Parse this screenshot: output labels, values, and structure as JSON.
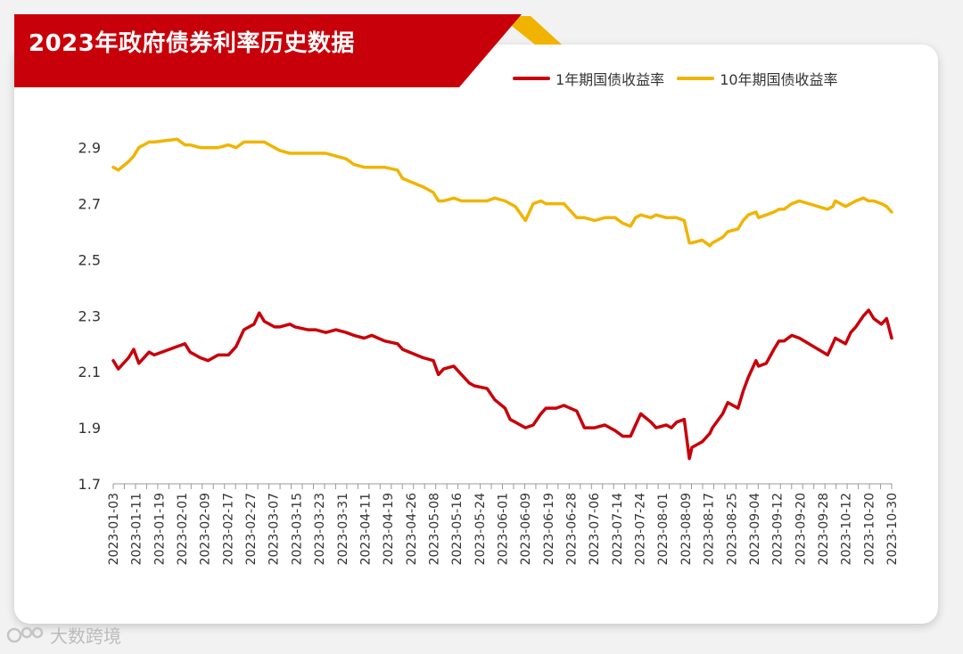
{
  "header": {
    "title": "2023年政府债券利率历史数据",
    "banner_color": "#c8000a",
    "banner_accent_color": "#f0b400"
  },
  "watermark": {
    "text": "大数跨境"
  },
  "chart_data": {
    "type": "line",
    "title": "2023年政府债券利率历史数据",
    "xlabel": "",
    "ylabel": "",
    "ylim": [
      1.7,
      2.95
    ],
    "yticks": [
      1.7,
      1.9,
      2.1,
      2.3,
      2.5,
      2.7,
      2.9
    ],
    "ytick_labels": [
      "1.7",
      "1.9",
      "2.1",
      "2.3",
      "2.5",
      "2.7",
      "2.9"
    ],
    "xlim": [
      "2023-01-03",
      "2023-11-03"
    ],
    "xtick_labels": [
      "2023-01-03",
      "2023-01-11",
      "2023-01-19",
      "2023-02-01",
      "2023-02-09",
      "2023-02-17",
      "2023-02-27",
      "2023-03-07",
      "2023-03-15",
      "2023-03-23",
      "2023-03-31",
      "2023-04-11",
      "2023-04-19",
      "2023-04-26",
      "2023-05-08",
      "2023-05-16",
      "2023-05-24",
      "2023-06-01",
      "2023-06-09",
      "2023-06-19",
      "2023-06-28",
      "2023-07-06",
      "2023-07-14",
      "2023-07-24",
      "2023-08-01",
      "2023-08-09",
      "2023-08-17",
      "2023-08-25",
      "2023-09-04",
      "2023-09-12",
      "2023-09-20",
      "2023-09-28",
      "2023-10-12",
      "2023-10-20",
      "2023-10-30"
    ],
    "legend_position": "top-right",
    "grid": false,
    "series": [
      {
        "name": "1年期国债收益率",
        "color": "#c8000a",
        "points": [
          [
            "2023-01-03",
            2.14
          ],
          [
            "2023-01-05",
            2.11
          ],
          [
            "2023-01-09",
            2.15
          ],
          [
            "2023-01-11",
            2.18
          ],
          [
            "2023-01-13",
            2.13
          ],
          [
            "2023-01-17",
            2.17
          ],
          [
            "2023-01-19",
            2.16
          ],
          [
            "2023-01-28",
            2.19
          ],
          [
            "2023-01-31",
            2.2
          ],
          [
            "2023-02-02",
            2.17
          ],
          [
            "2023-02-06",
            2.15
          ],
          [
            "2023-02-09",
            2.14
          ],
          [
            "2023-02-13",
            2.16
          ],
          [
            "2023-02-17",
            2.16
          ],
          [
            "2023-02-20",
            2.19
          ],
          [
            "2023-02-23",
            2.25
          ],
          [
            "2023-02-27",
            2.27
          ],
          [
            "2023-03-01",
            2.31
          ],
          [
            "2023-03-03",
            2.28
          ],
          [
            "2023-03-07",
            2.26
          ],
          [
            "2023-03-09",
            2.26
          ],
          [
            "2023-03-13",
            2.27
          ],
          [
            "2023-03-15",
            2.26
          ],
          [
            "2023-03-20",
            2.25
          ],
          [
            "2023-03-23",
            2.25
          ],
          [
            "2023-03-27",
            2.24
          ],
          [
            "2023-03-31",
            2.25
          ],
          [
            "2023-04-04",
            2.24
          ],
          [
            "2023-04-07",
            2.23
          ],
          [
            "2023-04-11",
            2.22
          ],
          [
            "2023-04-14",
            2.23
          ],
          [
            "2023-04-19",
            2.21
          ],
          [
            "2023-04-24",
            2.2
          ],
          [
            "2023-04-26",
            2.18
          ],
          [
            "2023-05-04",
            2.15
          ],
          [
            "2023-05-08",
            2.14
          ],
          [
            "2023-05-10",
            2.09
          ],
          [
            "2023-05-12",
            2.11
          ],
          [
            "2023-05-16",
            2.12
          ],
          [
            "2023-05-19",
            2.09
          ],
          [
            "2023-05-22",
            2.06
          ],
          [
            "2023-05-24",
            2.05
          ],
          [
            "2023-05-29",
            2.04
          ],
          [
            "2023-06-01",
            2.0
          ],
          [
            "2023-06-05",
            1.97
          ],
          [
            "2023-06-07",
            1.93
          ],
          [
            "2023-06-09",
            1.92
          ],
          [
            "2023-06-13",
            1.9
          ],
          [
            "2023-06-16",
            1.91
          ],
          [
            "2023-06-19",
            1.95
          ],
          [
            "2023-06-21",
            1.97
          ],
          [
            "2023-06-25",
            1.97
          ],
          [
            "2023-06-28",
            1.98
          ],
          [
            "2023-07-03",
            1.96
          ],
          [
            "2023-07-06",
            1.9
          ],
          [
            "2023-07-10",
            1.9
          ],
          [
            "2023-07-14",
            1.91
          ],
          [
            "2023-07-18",
            1.89
          ],
          [
            "2023-07-21",
            1.87
          ],
          [
            "2023-07-24",
            1.87
          ],
          [
            "2023-07-26",
            1.91
          ],
          [
            "2023-07-28",
            1.95
          ],
          [
            "2023-08-01",
            1.92
          ],
          [
            "2023-08-03",
            1.9
          ],
          [
            "2023-08-07",
            1.91
          ],
          [
            "2023-08-09",
            1.9
          ],
          [
            "2023-08-11",
            1.92
          ],
          [
            "2023-08-14",
            1.93
          ],
          [
            "2023-08-16",
            1.79
          ],
          [
            "2023-08-17",
            1.83
          ],
          [
            "2023-08-21",
            1.85
          ],
          [
            "2023-08-24",
            1.88
          ],
          [
            "2023-08-25",
            1.9
          ],
          [
            "2023-08-29",
            1.95
          ],
          [
            "2023-08-31",
            1.99
          ],
          [
            "2023-09-04",
            1.97
          ],
          [
            "2023-09-06",
            2.03
          ],
          [
            "2023-09-08",
            2.08
          ],
          [
            "2023-09-11",
            2.14
          ],
          [
            "2023-09-12",
            2.12
          ],
          [
            "2023-09-15",
            2.13
          ],
          [
            "2023-09-18",
            2.18
          ],
          [
            "2023-09-20",
            2.21
          ],
          [
            "2023-09-22",
            2.21
          ],
          [
            "2023-09-25",
            2.23
          ],
          [
            "2023-09-28",
            2.22
          ],
          [
            "2023-10-09",
            2.16
          ],
          [
            "2023-10-11",
            2.2
          ],
          [
            "2023-10-12",
            2.22
          ],
          [
            "2023-10-16",
            2.2
          ],
          [
            "2023-10-18",
            2.24
          ],
          [
            "2023-10-20",
            2.26
          ],
          [
            "2023-10-23",
            2.3
          ],
          [
            "2023-10-25",
            2.32
          ],
          [
            "2023-10-27",
            2.29
          ],
          [
            "2023-10-30",
            2.27
          ],
          [
            "2023-11-01",
            2.29
          ],
          [
            "2023-11-03",
            2.22
          ]
        ]
      },
      {
        "name": "10年期国债收益率",
        "color": "#f0b400",
        "points": [
          [
            "2023-01-03",
            2.83
          ],
          [
            "2023-01-05",
            2.82
          ],
          [
            "2023-01-09",
            2.85
          ],
          [
            "2023-01-11",
            2.87
          ],
          [
            "2023-01-13",
            2.9
          ],
          [
            "2023-01-17",
            2.92
          ],
          [
            "2023-01-19",
            2.92
          ],
          [
            "2023-01-28",
            2.93
          ],
          [
            "2023-01-31",
            2.91
          ],
          [
            "2023-02-02",
            2.91
          ],
          [
            "2023-02-06",
            2.9
          ],
          [
            "2023-02-09",
            2.9
          ],
          [
            "2023-02-13",
            2.9
          ],
          [
            "2023-02-17",
            2.91
          ],
          [
            "2023-02-20",
            2.9
          ],
          [
            "2023-02-23",
            2.92
          ],
          [
            "2023-02-27",
            2.92
          ],
          [
            "2023-03-01",
            2.92
          ],
          [
            "2023-03-03",
            2.92
          ],
          [
            "2023-03-07",
            2.9
          ],
          [
            "2023-03-09",
            2.89
          ],
          [
            "2023-03-13",
            2.88
          ],
          [
            "2023-03-15",
            2.88
          ],
          [
            "2023-03-20",
            2.88
          ],
          [
            "2023-03-23",
            2.88
          ],
          [
            "2023-03-27",
            2.88
          ],
          [
            "2023-03-31",
            2.87
          ],
          [
            "2023-04-04",
            2.86
          ],
          [
            "2023-04-07",
            2.84
          ],
          [
            "2023-04-11",
            2.83
          ],
          [
            "2023-04-14",
            2.83
          ],
          [
            "2023-04-19",
            2.83
          ],
          [
            "2023-04-24",
            2.82
          ],
          [
            "2023-04-26",
            2.79
          ],
          [
            "2023-05-04",
            2.76
          ],
          [
            "2023-05-08",
            2.74
          ],
          [
            "2023-05-10",
            2.71
          ],
          [
            "2023-05-12",
            2.71
          ],
          [
            "2023-05-16",
            2.72
          ],
          [
            "2023-05-19",
            2.71
          ],
          [
            "2023-05-22",
            2.71
          ],
          [
            "2023-05-24",
            2.71
          ],
          [
            "2023-05-29",
            2.71
          ],
          [
            "2023-06-01",
            2.72
          ],
          [
            "2023-06-05",
            2.71
          ],
          [
            "2023-06-07",
            2.7
          ],
          [
            "2023-06-09",
            2.69
          ],
          [
            "2023-06-13",
            2.64
          ],
          [
            "2023-06-16",
            2.7
          ],
          [
            "2023-06-19",
            2.71
          ],
          [
            "2023-06-21",
            2.7
          ],
          [
            "2023-06-25",
            2.7
          ],
          [
            "2023-06-28",
            2.7
          ],
          [
            "2023-07-03",
            2.65
          ],
          [
            "2023-07-06",
            2.65
          ],
          [
            "2023-07-10",
            2.64
          ],
          [
            "2023-07-14",
            2.65
          ],
          [
            "2023-07-18",
            2.65
          ],
          [
            "2023-07-21",
            2.63
          ],
          [
            "2023-07-24",
            2.62
          ],
          [
            "2023-07-26",
            2.65
          ],
          [
            "2023-07-28",
            2.66
          ],
          [
            "2023-08-01",
            2.65
          ],
          [
            "2023-08-03",
            2.66
          ],
          [
            "2023-08-07",
            2.65
          ],
          [
            "2023-08-09",
            2.65
          ],
          [
            "2023-08-11",
            2.65
          ],
          [
            "2023-08-14",
            2.64
          ],
          [
            "2023-08-16",
            2.56
          ],
          [
            "2023-08-17",
            2.56
          ],
          [
            "2023-08-21",
            2.57
          ],
          [
            "2023-08-24",
            2.55
          ],
          [
            "2023-08-25",
            2.56
          ],
          [
            "2023-08-29",
            2.58
          ],
          [
            "2023-08-31",
            2.6
          ],
          [
            "2023-09-04",
            2.61
          ],
          [
            "2023-09-06",
            2.64
          ],
          [
            "2023-09-08",
            2.66
          ],
          [
            "2023-09-11",
            2.67
          ],
          [
            "2023-09-12",
            2.65
          ],
          [
            "2023-09-15",
            2.66
          ],
          [
            "2023-09-18",
            2.67
          ],
          [
            "2023-09-20",
            2.68
          ],
          [
            "2023-09-22",
            2.68
          ],
          [
            "2023-09-25",
            2.7
          ],
          [
            "2023-09-28",
            2.71
          ],
          [
            "2023-10-09",
            2.68
          ],
          [
            "2023-10-11",
            2.69
          ],
          [
            "2023-10-12",
            2.71
          ],
          [
            "2023-10-16",
            2.69
          ],
          [
            "2023-10-18",
            2.7
          ],
          [
            "2023-10-20",
            2.71
          ],
          [
            "2023-10-23",
            2.72
          ],
          [
            "2023-10-25",
            2.71
          ],
          [
            "2023-10-27",
            2.71
          ],
          [
            "2023-10-30",
            2.7
          ],
          [
            "2023-11-01",
            2.69
          ],
          [
            "2023-11-03",
            2.67
          ]
        ]
      }
    ]
  }
}
